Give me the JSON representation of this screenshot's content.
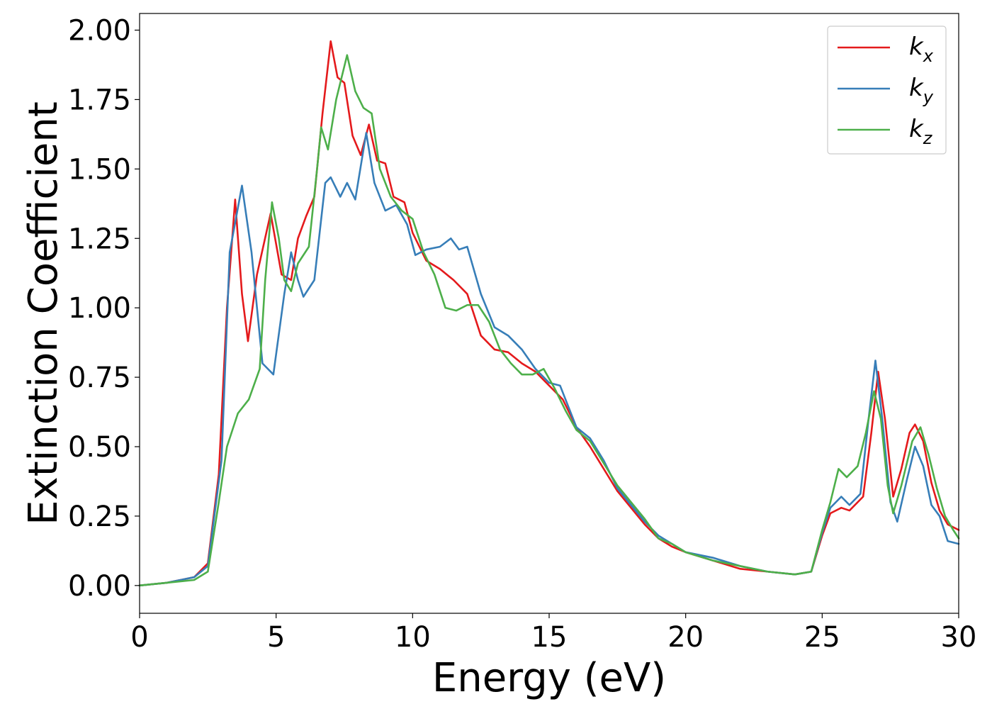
{
  "chart_data": {
    "type": "line",
    "xlabel": "Energy (eV)",
    "ylabel": "Extinction Coefficient",
    "xlim": [
      0,
      30
    ],
    "ylim": [
      -0.1,
      2.06
    ],
    "xticks": [
      0,
      5,
      10,
      15,
      20,
      25,
      30
    ],
    "xtick_labels": [
      "0",
      "5",
      "10",
      "15",
      "20",
      "25",
      "30"
    ],
    "yticks": [
      0,
      0.25,
      0.5,
      0.75,
      1.0,
      1.25,
      1.5,
      1.75,
      2.0
    ],
    "ytick_labels": [
      "0.00",
      "0.25",
      "0.50",
      "0.75",
      "1.00",
      "1.25",
      "1.50",
      "1.75",
      "2.00"
    ],
    "grid": false,
    "legend_position": "top-right",
    "series": [
      {
        "name": "k_x",
        "label_base": "k",
        "label_sub": "x",
        "color": "#e41a1c",
        "points": [
          [
            0,
            0.0
          ],
          [
            1,
            0.01
          ],
          [
            2,
            0.03
          ],
          [
            2.5,
            0.08
          ],
          [
            2.9,
            0.4
          ],
          [
            3.2,
            1.0
          ],
          [
            3.5,
            1.39
          ],
          [
            3.75,
            1.05
          ],
          [
            3.97,
            0.88
          ],
          [
            4.3,
            1.12
          ],
          [
            4.8,
            1.34
          ],
          [
            5.2,
            1.12
          ],
          [
            5.55,
            1.1
          ],
          [
            5.8,
            1.25
          ],
          [
            6.1,
            1.33
          ],
          [
            6.4,
            1.4
          ],
          [
            6.7,
            1.7
          ],
          [
            7.0,
            1.96
          ],
          [
            7.25,
            1.83
          ],
          [
            7.5,
            1.81
          ],
          [
            7.8,
            1.62
          ],
          [
            8.1,
            1.55
          ],
          [
            8.4,
            1.66
          ],
          [
            8.7,
            1.53
          ],
          [
            9.0,
            1.52
          ],
          [
            9.3,
            1.4
          ],
          [
            9.7,
            1.38
          ],
          [
            10.0,
            1.27
          ],
          [
            10.5,
            1.17
          ],
          [
            11.0,
            1.14
          ],
          [
            11.5,
            1.1
          ],
          [
            12.0,
            1.05
          ],
          [
            12.5,
            0.9
          ],
          [
            13.0,
            0.85
          ],
          [
            13.5,
            0.84
          ],
          [
            14.0,
            0.8
          ],
          [
            14.5,
            0.77
          ],
          [
            15.0,
            0.72
          ],
          [
            15.5,
            0.67
          ],
          [
            16.0,
            0.57
          ],
          [
            16.5,
            0.5
          ],
          [
            17.0,
            0.42
          ],
          [
            17.5,
            0.34
          ],
          [
            18.0,
            0.28
          ],
          [
            18.5,
            0.22
          ],
          [
            19.0,
            0.17
          ],
          [
            19.5,
            0.14
          ],
          [
            20.0,
            0.12
          ],
          [
            21.0,
            0.09
          ],
          [
            22.0,
            0.06
          ],
          [
            23.0,
            0.05
          ],
          [
            24.0,
            0.04
          ],
          [
            24.6,
            0.05
          ],
          [
            25.0,
            0.18
          ],
          [
            25.3,
            0.26
          ],
          [
            25.7,
            0.28
          ],
          [
            26.0,
            0.27
          ],
          [
            26.5,
            0.32
          ],
          [
            26.8,
            0.55
          ],
          [
            27.05,
            0.77
          ],
          [
            27.3,
            0.6
          ],
          [
            27.6,
            0.32
          ],
          [
            27.9,
            0.42
          ],
          [
            28.2,
            0.55
          ],
          [
            28.4,
            0.58
          ],
          [
            28.7,
            0.52
          ],
          [
            29.0,
            0.37
          ],
          [
            29.3,
            0.27
          ],
          [
            29.6,
            0.22
          ],
          [
            30.0,
            0.2
          ]
        ]
      },
      {
        "name": "k_y",
        "label_base": "k",
        "label_sub": "y",
        "color": "#377eb8",
        "points": [
          [
            0,
            0.0
          ],
          [
            1,
            0.01
          ],
          [
            2,
            0.03
          ],
          [
            2.5,
            0.07
          ],
          [
            3.0,
            0.45
          ],
          [
            3.3,
            1.2
          ],
          [
            3.75,
            1.44
          ],
          [
            4.1,
            1.2
          ],
          [
            4.5,
            0.8
          ],
          [
            4.9,
            0.76
          ],
          [
            5.3,
            1.05
          ],
          [
            5.55,
            1.2
          ],
          [
            5.8,
            1.1
          ],
          [
            6.0,
            1.04
          ],
          [
            6.4,
            1.1
          ],
          [
            6.8,
            1.45
          ],
          [
            7.0,
            1.47
          ],
          [
            7.35,
            1.4
          ],
          [
            7.6,
            1.45
          ],
          [
            7.9,
            1.39
          ],
          [
            8.3,
            1.63
          ],
          [
            8.6,
            1.45
          ],
          [
            9.0,
            1.35
          ],
          [
            9.4,
            1.37
          ],
          [
            9.8,
            1.3
          ],
          [
            10.1,
            1.19
          ],
          [
            10.5,
            1.21
          ],
          [
            11.0,
            1.22
          ],
          [
            11.4,
            1.25
          ],
          [
            11.7,
            1.21
          ],
          [
            12.0,
            1.22
          ],
          [
            12.5,
            1.05
          ],
          [
            13.0,
            0.93
          ],
          [
            13.5,
            0.9
          ],
          [
            14.0,
            0.85
          ],
          [
            14.5,
            0.78
          ],
          [
            15.0,
            0.73
          ],
          [
            15.4,
            0.72
          ],
          [
            16.0,
            0.57
          ],
          [
            16.5,
            0.53
          ],
          [
            17.0,
            0.45
          ],
          [
            17.5,
            0.35
          ],
          [
            18.0,
            0.29
          ],
          [
            18.5,
            0.23
          ],
          [
            19.0,
            0.18
          ],
          [
            19.5,
            0.15
          ],
          [
            20.0,
            0.12
          ],
          [
            21.0,
            0.1
          ],
          [
            22.0,
            0.07
          ],
          [
            23.0,
            0.05
          ],
          [
            24.0,
            0.04
          ],
          [
            24.6,
            0.05
          ],
          [
            25.0,
            0.19
          ],
          [
            25.3,
            0.28
          ],
          [
            25.7,
            0.32
          ],
          [
            26.0,
            0.29
          ],
          [
            26.4,
            0.33
          ],
          [
            26.7,
            0.6
          ],
          [
            26.95,
            0.81
          ],
          [
            27.2,
            0.6
          ],
          [
            27.5,
            0.3
          ],
          [
            27.75,
            0.23
          ],
          [
            28.1,
            0.38
          ],
          [
            28.4,
            0.5
          ],
          [
            28.7,
            0.43
          ],
          [
            29.0,
            0.29
          ],
          [
            29.3,
            0.25
          ],
          [
            29.6,
            0.16
          ],
          [
            30.0,
            0.15
          ]
        ]
      },
      {
        "name": "k_z",
        "label_base": "k",
        "label_sub": "z",
        "color": "#4daf4a",
        "points": [
          [
            0,
            0.0
          ],
          [
            1,
            0.01
          ],
          [
            2,
            0.02
          ],
          [
            2.5,
            0.05
          ],
          [
            2.9,
            0.3
          ],
          [
            3.2,
            0.5
          ],
          [
            3.6,
            0.62
          ],
          [
            4.0,
            0.67
          ],
          [
            4.4,
            0.78
          ],
          [
            4.6,
            1.1
          ],
          [
            4.85,
            1.38
          ],
          [
            5.1,
            1.25
          ],
          [
            5.3,
            1.1
          ],
          [
            5.55,
            1.06
          ],
          [
            5.8,
            1.16
          ],
          [
            6.2,
            1.22
          ],
          [
            6.5,
            1.5
          ],
          [
            6.65,
            1.65
          ],
          [
            6.9,
            1.57
          ],
          [
            7.2,
            1.75
          ],
          [
            7.6,
            1.91
          ],
          [
            7.9,
            1.78
          ],
          [
            8.2,
            1.72
          ],
          [
            8.5,
            1.7
          ],
          [
            8.8,
            1.5
          ],
          [
            9.2,
            1.4
          ],
          [
            9.6,
            1.35
          ],
          [
            10.0,
            1.32
          ],
          [
            10.4,
            1.2
          ],
          [
            10.8,
            1.12
          ],
          [
            11.2,
            1.0
          ],
          [
            11.6,
            0.99
          ],
          [
            12.0,
            1.01
          ],
          [
            12.4,
            1.01
          ],
          [
            12.8,
            0.95
          ],
          [
            13.2,
            0.85
          ],
          [
            13.6,
            0.8
          ],
          [
            14.0,
            0.76
          ],
          [
            14.4,
            0.76
          ],
          [
            14.8,
            0.78
          ],
          [
            15.2,
            0.71
          ],
          [
            15.6,
            0.63
          ],
          [
            16.0,
            0.56
          ],
          [
            16.5,
            0.52
          ],
          [
            17.0,
            0.44
          ],
          [
            17.5,
            0.36
          ],
          [
            18.0,
            0.3
          ],
          [
            18.5,
            0.24
          ],
          [
            19.0,
            0.17
          ],
          [
            19.5,
            0.15
          ],
          [
            20.0,
            0.12
          ],
          [
            21.0,
            0.09
          ],
          [
            22.0,
            0.07
          ],
          [
            23.0,
            0.05
          ],
          [
            24.0,
            0.04
          ],
          [
            24.6,
            0.05
          ],
          [
            25.0,
            0.2
          ],
          [
            25.3,
            0.3
          ],
          [
            25.6,
            0.42
          ],
          [
            25.9,
            0.39
          ],
          [
            26.3,
            0.43
          ],
          [
            26.6,
            0.55
          ],
          [
            26.9,
            0.7
          ],
          [
            27.15,
            0.6
          ],
          [
            27.4,
            0.36
          ],
          [
            27.6,
            0.26
          ],
          [
            27.9,
            0.36
          ],
          [
            28.3,
            0.52
          ],
          [
            28.6,
            0.57
          ],
          [
            28.9,
            0.47
          ],
          [
            29.2,
            0.35
          ],
          [
            29.5,
            0.25
          ],
          [
            29.8,
            0.2
          ],
          [
            30.0,
            0.17
          ]
        ]
      }
    ]
  }
}
